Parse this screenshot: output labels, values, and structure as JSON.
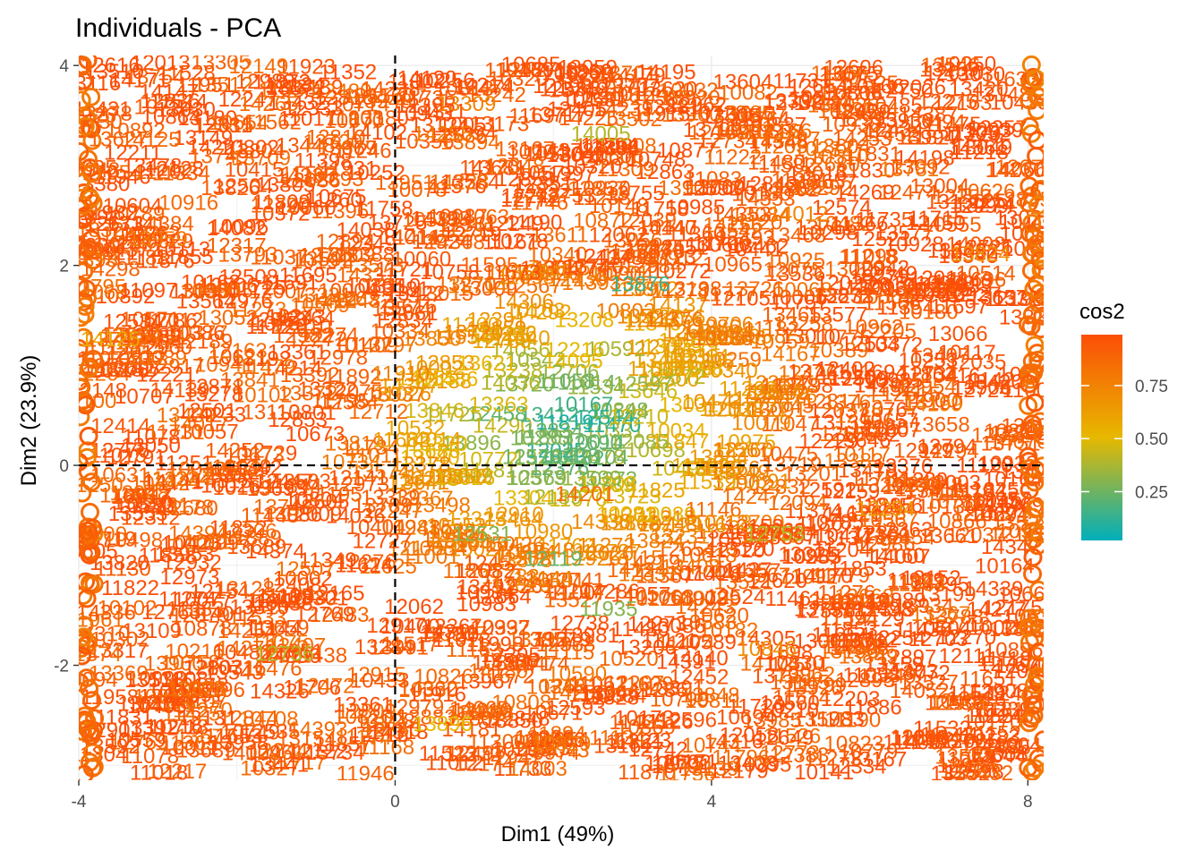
{
  "chart_data": {
    "type": "scatter",
    "title": "Individuals - PCA",
    "xlabel": "Dim1 (49%)",
    "ylabel": "Dim2 (23.9%)",
    "xlim": [
      -4.0,
      8.2
    ],
    "ylim": [
      -3.15,
      4.1
    ],
    "x_ticks": [
      -4,
      0,
      4,
      8
    ],
    "x_tick_labels": [
      "-4",
      "0",
      "4",
      "8"
    ],
    "y_ticks": [
      -2,
      0,
      2,
      4
    ],
    "y_tick_labels": [
      "-2",
      "0",
      "2",
      "4"
    ],
    "grid": true,
    "reference_lines": {
      "x": 0,
      "y": 0,
      "style": "dashed"
    },
    "color_by": "cos2",
    "legend": {
      "title": "cos2",
      "position": "right",
      "ticks": [
        0.25,
        0.5,
        0.75
      ],
      "tick_labels": [
        "0.25",
        "0.50",
        "0.75"
      ],
      "colors": {
        "low": "#00AFBB",
        "mid": "#E7B800",
        "high": "#FC4E07"
      },
      "range": [
        0.02,
        0.99
      ]
    },
    "points": [
      {
        "label": "13627",
        "x": -3.5,
        "y": 3.25,
        "cos2": 0.9
      },
      {
        "label": "14265",
        "x": -1.6,
        "y": 3.6,
        "cos2": 0.85
      },
      {
        "label": "14255",
        "x": 0.6,
        "y": 3.3,
        "cos2": 0.8
      },
      {
        "label": "13502",
        "x": 3.0,
        "y": 3.45,
        "cos2": 0.85
      },
      {
        "label": "14005",
        "x": 2.6,
        "y": 3.3,
        "cos2": 0.4
      },
      {
        "label": "14227",
        "x": 5.0,
        "y": 3.25,
        "cos2": 0.85
      },
      {
        "label": "13781",
        "x": 6.5,
        "y": 2.95,
        "cos2": 0.8
      },
      {
        "label": "13959",
        "x": -3.0,
        "y": 2.25,
        "cos2": 0.8
      },
      {
        "label": "13592",
        "x": -0.9,
        "y": 2.05,
        "cos2": 0.9
      },
      {
        "label": "13270",
        "x": 0.9,
        "y": 1.8,
        "cos2": 0.85
      },
      {
        "label": "13876",
        "x": 3.1,
        "y": 1.8,
        "cos2": 0.15
      },
      {
        "label": "13824",
        "x": 7.4,
        "y": 2.1,
        "cos2": 0.7
      },
      {
        "label": "14298",
        "x": -3.6,
        "y": 1.95,
        "cos2": 0.9
      },
      {
        "label": "14125",
        "x": -3.6,
        "y": 1.25,
        "cos2": 0.6
      },
      {
        "label": "14167",
        "x": 5.0,
        "y": 1.1,
        "cos2": 0.8
      },
      {
        "label": "14199",
        "x": 6.8,
        "y": 0.6,
        "cos2": 0.75
      },
      {
        "label": "14201",
        "x": 2.4,
        "y": -0.3,
        "cos2": 0.85
      },
      {
        "label": "12294",
        "x": 6.2,
        "y": -0.45,
        "cos2": 0.65
      },
      {
        "label": "12753",
        "x": 4.8,
        "y": -0.7,
        "cos2": 0.4
      },
      {
        "label": "12986",
        "x": 6.2,
        "y": -0.8,
        "cos2": 0.9
      },
      {
        "label": "14224",
        "x": -2.7,
        "y": -0.15,
        "cos2": 0.8
      },
      {
        "label": "12119",
        "x": 2.0,
        "y": -0.95,
        "cos2": 0.25
      },
      {
        "label": "12337",
        "x": 3.2,
        "y": -1.1,
        "cos2": 0.8
      },
      {
        "label": "11084",
        "x": 6.6,
        "y": -1.2,
        "cos2": 0.85
      },
      {
        "label": "13128",
        "x": -1.9,
        "y": -1.25,
        "cos2": 0.9
      },
      {
        "label": "13267",
        "x": 6.9,
        "y": -1.5,
        "cos2": 0.8
      },
      {
        "label": "11935",
        "x": 2.7,
        "y": -1.45,
        "cos2": 0.3
      },
      {
        "label": "10626",
        "x": -2.5,
        "y": -2.25,
        "cos2": 0.85
      },
      {
        "label": "12736",
        "x": -1.4,
        "y": -1.9,
        "cos2": 0.4
      },
      {
        "label": "10590",
        "x": 2.3,
        "y": -2.1,
        "cos2": 0.8
      },
      {
        "label": "10846",
        "x": 4.7,
        "y": -1.85,
        "cos2": 0.7
      },
      {
        "label": "11119",
        "x": 7.7,
        "y": -1.95,
        "cos2": 0.95
      },
      {
        "label": "10708",
        "x": -1.6,
        "y": -2.55,
        "cos2": 0.85
      },
      {
        "label": "13896",
        "x": 0.6,
        "y": -2.6,
        "cos2": 0.5
      },
      {
        "label": "10823",
        "x": 5.8,
        "y": -2.8,
        "cos2": 0.9
      },
      {
        "label": "10829",
        "x": 2.1,
        "y": -2.8,
        "cos2": 0.8
      },
      {
        "label": "13309",
        "x": 0.9,
        "y": 3.6,
        "cos2": 0.75
      },
      {
        "label": "14012",
        "x": 5.1,
        "y": 2.5,
        "cos2": 0.75
      },
      {
        "label": "12531",
        "x": 1.1,
        "y": -0.7,
        "cos2": 0.3
      },
      {
        "label": "14003",
        "x": 1.8,
        "y": -3.05,
        "cos2": 0.85
      }
    ]
  }
}
